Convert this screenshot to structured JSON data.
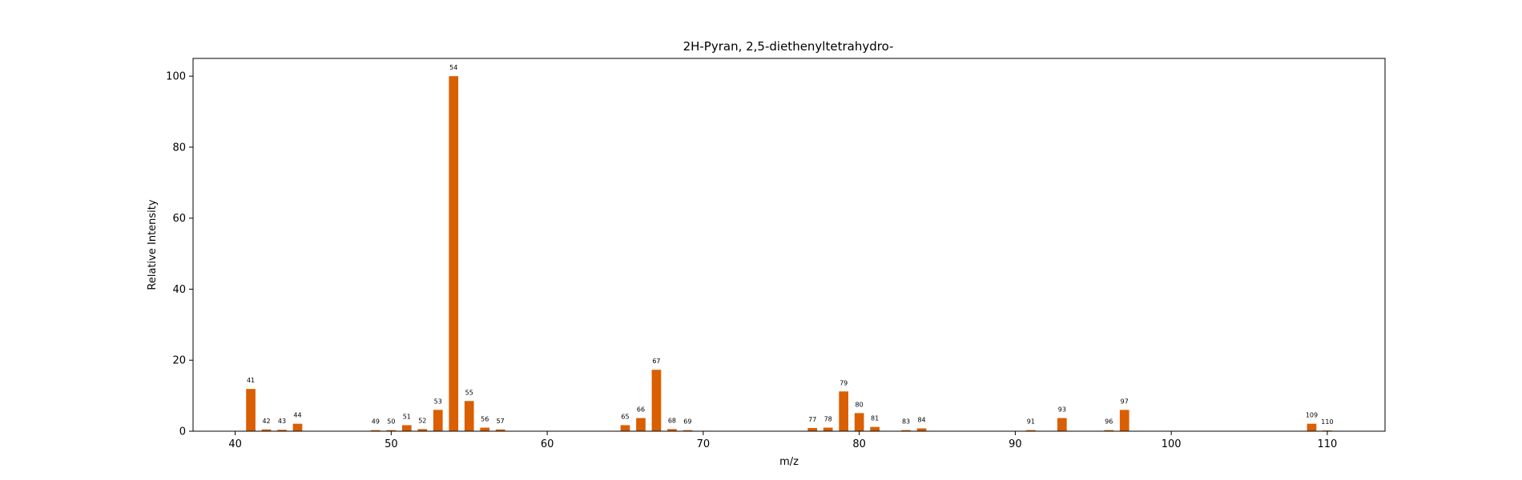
{
  "chart_data": {
    "type": "bar",
    "title": "2H-Pyran, 2,5-diethenyltetrahydro-",
    "xlabel": "m/z",
    "ylabel": "Relative Intensity",
    "xlim": [
      37.3,
      113.7
    ],
    "ylim": [
      0,
      105
    ],
    "xticks": [
      40,
      50,
      60,
      70,
      80,
      90,
      100,
      110
    ],
    "yticks": [
      0,
      20,
      40,
      60,
      80,
      100
    ],
    "grid": false,
    "bar_color": "#d95f02",
    "x": [
      41,
      42,
      43,
      44,
      49,
      50,
      51,
      52,
      53,
      54,
      55,
      56,
      57,
      65,
      66,
      67,
      68,
      69,
      77,
      78,
      79,
      80,
      81,
      83,
      84,
      91,
      93,
      96,
      97,
      109,
      110
    ],
    "values": [
      11.9,
      0.5,
      0.4,
      2.1,
      0.3,
      0.3,
      1.7,
      0.6,
      6.0,
      100,
      8.5,
      1.0,
      0.5,
      1.7,
      3.7,
      17.3,
      0.6,
      0.3,
      0.9,
      1.0,
      11.2,
      5.1,
      1.2,
      0.3,
      0.8,
      0.3,
      3.7,
      0.3,
      6.0,
      2.1,
      0.2
    ],
    "labels": [
      "41",
      "42",
      "43",
      "44",
      "49",
      "50",
      "51",
      "52",
      "53",
      "54",
      "55",
      "56",
      "57",
      "65",
      "66",
      "67",
      "68",
      "69",
      "77",
      "78",
      "79",
      "80",
      "81",
      "83",
      "84",
      "91",
      "93",
      "96",
      "97",
      "109",
      "110"
    ]
  }
}
